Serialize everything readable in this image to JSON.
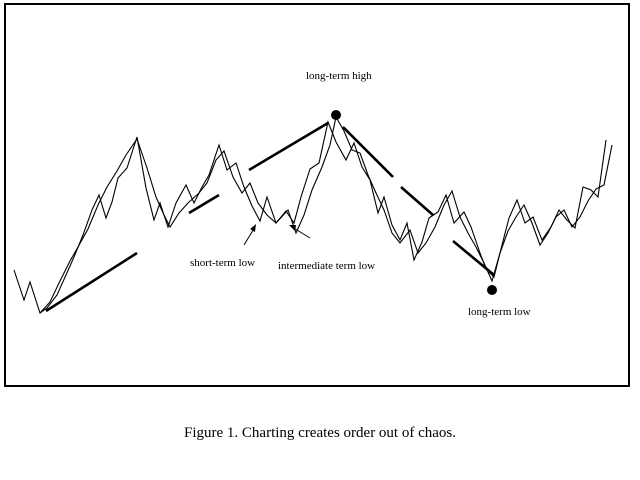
{
  "annotations": {
    "long_term_high": "long-term high",
    "short_term_low": "short-term low",
    "intermediate_term_low": "intermediate term low",
    "long_term_low": "long-term low"
  },
  "caption": "Figure 1. Charting creates order out of chaos.",
  "colors": {
    "line": "#000000",
    "background": "#ffffff"
  },
  "chart_data": {
    "type": "line",
    "series": [
      {
        "values": [
          3,
          2,
          0,
          2,
          5,
          6,
          8,
          10,
          11,
          12,
          9,
          6,
          7,
          9,
          11,
          10,
          8,
          5,
          6,
          8,
          7,
          6,
          9,
          11,
          13,
          12,
          10,
          7,
          5,
          4,
          6,
          7,
          5,
          8,
          7,
          6,
          8,
          5,
          3,
          7,
          6,
          4,
          2,
          5,
          7,
          6,
          4,
          6,
          8,
          7,
          5,
          6,
          8,
          10
        ]
      },
      {
        "values": [
          1,
          0,
          3,
          4,
          6,
          8,
          10,
          12,
          10,
          8,
          6,
          7,
          8,
          10,
          9,
          7,
          6,
          5,
          7,
          9,
          12,
          13,
          11,
          9,
          7,
          6,
          5,
          4,
          6,
          5,
          3,
          4,
          6,
          7,
          5,
          4,
          3,
          1,
          2,
          4,
          5,
          3,
          4,
          6,
          5,
          7,
          9
        ]
      }
    ],
    "markers": [
      "long-term high",
      "long-term low"
    ]
  }
}
